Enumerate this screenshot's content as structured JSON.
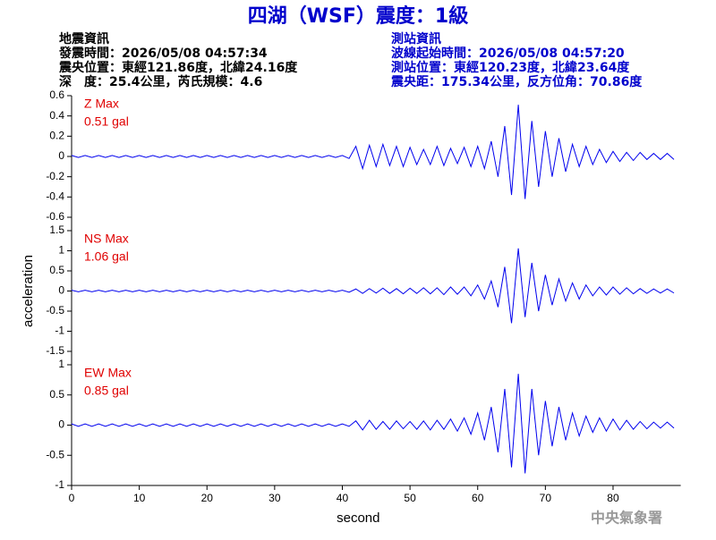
{
  "header": {
    "title": "四湖（WSF）震度：1級",
    "left": [
      "地震資訊",
      "發震時間：2026/05/08 04:57:34",
      "震央位置：東經121.86度，北緯24.16度",
      "深　度：25.4公里，芮氏規模：4.6"
    ],
    "right": [
      "測站資訊",
      "波線起始時間：2026/05/08 04:57:20",
      "測站位置：東經120.23度，北緯23.64度",
      "震央距：175.34公里，反方位角：70.86度"
    ]
  },
  "footer": "中央氣象署",
  "chart_data": [
    {
      "type": "line",
      "annotation": "Z Max",
      "annotation_value": "0.51 gal",
      "color": "#0000ee",
      "xlim": [
        0,
        90
      ],
      "ylim": [
        -0.6,
        0.6
      ],
      "yticks": [
        0.6,
        0.4,
        0.2,
        0,
        -0.2,
        -0.4,
        -0.6
      ],
      "x": [
        0,
        1,
        2,
        3,
        4,
        5,
        6,
        7,
        8,
        9,
        10,
        11,
        12,
        13,
        14,
        15,
        16,
        17,
        18,
        19,
        20,
        21,
        22,
        23,
        24,
        25,
        26,
        27,
        28,
        29,
        30,
        31,
        32,
        33,
        34,
        35,
        36,
        37,
        38,
        39,
        40,
        41,
        42,
        43,
        44,
        45,
        46,
        47,
        48,
        49,
        50,
        51,
        52,
        53,
        54,
        55,
        56,
        57,
        58,
        59,
        60,
        61,
        62,
        63,
        64,
        65,
        66,
        67,
        68,
        69,
        70,
        71,
        72,
        73,
        74,
        75,
        76,
        77,
        78,
        79,
        80,
        81,
        82,
        83,
        84,
        85,
        86,
        87,
        88,
        89
      ],
      "values": [
        0.01,
        -0.01,
        0.01,
        -0.01,
        0.01,
        -0.01,
        0.01,
        -0.01,
        0.01,
        -0.01,
        0.01,
        -0.01,
        0.01,
        -0.01,
        0.01,
        -0.01,
        0.01,
        -0.01,
        0.01,
        -0.01,
        0.01,
        -0.01,
        0.01,
        -0.01,
        0.01,
        -0.01,
        0.01,
        -0.01,
        0.01,
        -0.01,
        0.01,
        -0.01,
        0.01,
        -0.01,
        0.01,
        -0.01,
        0.01,
        -0.01,
        0.01,
        -0.01,
        0.01,
        -0.02,
        0.1,
        -0.12,
        0.11,
        -0.1,
        0.12,
        -0.09,
        0.1,
        -0.1,
        0.09,
        -0.08,
        0.07,
        -0.08,
        0.1,
        -0.09,
        0.08,
        -0.07,
        0.09,
        -0.1,
        0.1,
        -0.12,
        0.15,
        -0.2,
        0.3,
        -0.38,
        0.51,
        -0.42,
        0.35,
        -0.3,
        0.25,
        -0.2,
        0.18,
        -0.15,
        0.12,
        -0.1,
        0.1,
        -0.08,
        0.07,
        -0.06,
        0.05,
        -0.05,
        0.04,
        -0.04,
        0.04,
        -0.03,
        0.03,
        -0.03,
        0.03,
        -0.03
      ]
    },
    {
      "type": "line",
      "annotation": "NS Max",
      "annotation_value": "1.06 gal",
      "ylabel": "acceleration",
      "color": "#0000ee",
      "xlim": [
        0,
        90
      ],
      "ylim": [
        -1.5,
        1.5
      ],
      "yticks": [
        1.5,
        1,
        0.5,
        0,
        -0.5,
        -1,
        -1.5
      ],
      "x": [
        0,
        1,
        2,
        3,
        4,
        5,
        6,
        7,
        8,
        9,
        10,
        11,
        12,
        13,
        14,
        15,
        16,
        17,
        18,
        19,
        20,
        21,
        22,
        23,
        24,
        25,
        26,
        27,
        28,
        29,
        30,
        31,
        32,
        33,
        34,
        35,
        36,
        37,
        38,
        39,
        40,
        41,
        42,
        43,
        44,
        45,
        46,
        47,
        48,
        49,
        50,
        51,
        52,
        53,
        54,
        55,
        56,
        57,
        58,
        59,
        60,
        61,
        62,
        63,
        64,
        65,
        66,
        67,
        68,
        69,
        70,
        71,
        72,
        73,
        74,
        75,
        76,
        77,
        78,
        79,
        80,
        81,
        82,
        83,
        84,
        85,
        86,
        87,
        88,
        89
      ],
      "values": [
        0.02,
        -0.02,
        0.02,
        -0.02,
        0.02,
        -0.02,
        0.02,
        -0.02,
        0.02,
        -0.02,
        0.02,
        -0.02,
        0.02,
        -0.02,
        0.02,
        -0.02,
        0.02,
        -0.02,
        0.02,
        -0.02,
        0.02,
        -0.02,
        0.02,
        -0.02,
        0.02,
        -0.02,
        0.02,
        -0.02,
        0.02,
        -0.02,
        0.02,
        -0.02,
        0.02,
        -0.02,
        0.02,
        -0.02,
        0.02,
        -0.02,
        0.02,
        -0.02,
        0.02,
        -0.03,
        0.05,
        -0.06,
        0.06,
        -0.05,
        0.07,
        -0.06,
        0.06,
        -0.07,
        0.07,
        -0.06,
        0.08,
        -0.07,
        0.08,
        -0.09,
        0.1,
        -0.08,
        0.1,
        -0.12,
        0.15,
        -0.2,
        0.25,
        -0.4,
        0.6,
        -0.8,
        1.06,
        -0.65,
        0.7,
        -0.5,
        0.4,
        -0.35,
        0.3,
        -0.25,
        0.2,
        -0.2,
        0.15,
        -0.12,
        0.1,
        -0.1,
        0.1,
        -0.08,
        0.08,
        -0.07,
        0.06,
        -0.06,
        0.05,
        -0.05,
        0.05,
        -0.05
      ]
    },
    {
      "type": "line",
      "annotation": "EW Max",
      "annotation_value": "0.85 gal",
      "xlabel": "second",
      "color": "#0000ee",
      "xlim": [
        0,
        90
      ],
      "ylim": [
        -1,
        1
      ],
      "yticks": [
        1,
        0.5,
        0,
        -0.5,
        -1
      ],
      "xticks": [
        0,
        10,
        20,
        30,
        40,
        50,
        60,
        70,
        80
      ],
      "x": [
        0,
        1,
        2,
        3,
        4,
        5,
        6,
        7,
        8,
        9,
        10,
        11,
        12,
        13,
        14,
        15,
        16,
        17,
        18,
        19,
        20,
        21,
        22,
        23,
        24,
        25,
        26,
        27,
        28,
        29,
        30,
        31,
        32,
        33,
        34,
        35,
        36,
        37,
        38,
        39,
        40,
        41,
        42,
        43,
        44,
        45,
        46,
        47,
        48,
        49,
        50,
        51,
        52,
        53,
        54,
        55,
        56,
        57,
        58,
        59,
        60,
        61,
        62,
        63,
        64,
        65,
        66,
        67,
        68,
        69,
        70,
        71,
        72,
        73,
        74,
        75,
        76,
        77,
        78,
        79,
        80,
        81,
        82,
        83,
        84,
        85,
        86,
        87,
        88,
        89
      ],
      "values": [
        0.02,
        -0.02,
        0.02,
        -0.02,
        0.02,
        -0.02,
        0.02,
        -0.02,
        0.02,
        -0.02,
        0.02,
        -0.02,
        0.02,
        -0.02,
        0.02,
        -0.02,
        0.02,
        -0.02,
        0.02,
        -0.02,
        0.02,
        -0.02,
        0.02,
        -0.02,
        0.02,
        -0.02,
        0.02,
        -0.02,
        0.02,
        -0.02,
        0.02,
        -0.02,
        0.02,
        -0.02,
        0.02,
        -0.02,
        0.02,
        -0.02,
        0.02,
        -0.02,
        0.02,
        -0.02,
        0.07,
        -0.08,
        0.08,
        -0.07,
        0.06,
        -0.07,
        0.07,
        -0.06,
        0.06,
        -0.07,
        0.07,
        -0.08,
        0.08,
        -0.07,
        0.1,
        -0.1,
        0.12,
        -0.15,
        0.2,
        -0.25,
        0.3,
        -0.45,
        0.6,
        -0.7,
        0.85,
        -0.8,
        0.6,
        -0.5,
        0.4,
        -0.35,
        0.3,
        -0.25,
        0.2,
        -0.18,
        0.15,
        -0.12,
        0.12,
        -0.1,
        0.1,
        -0.08,
        0.08,
        -0.07,
        0.06,
        -0.06,
        0.05,
        -0.05,
        0.05,
        -0.05
      ]
    }
  ]
}
